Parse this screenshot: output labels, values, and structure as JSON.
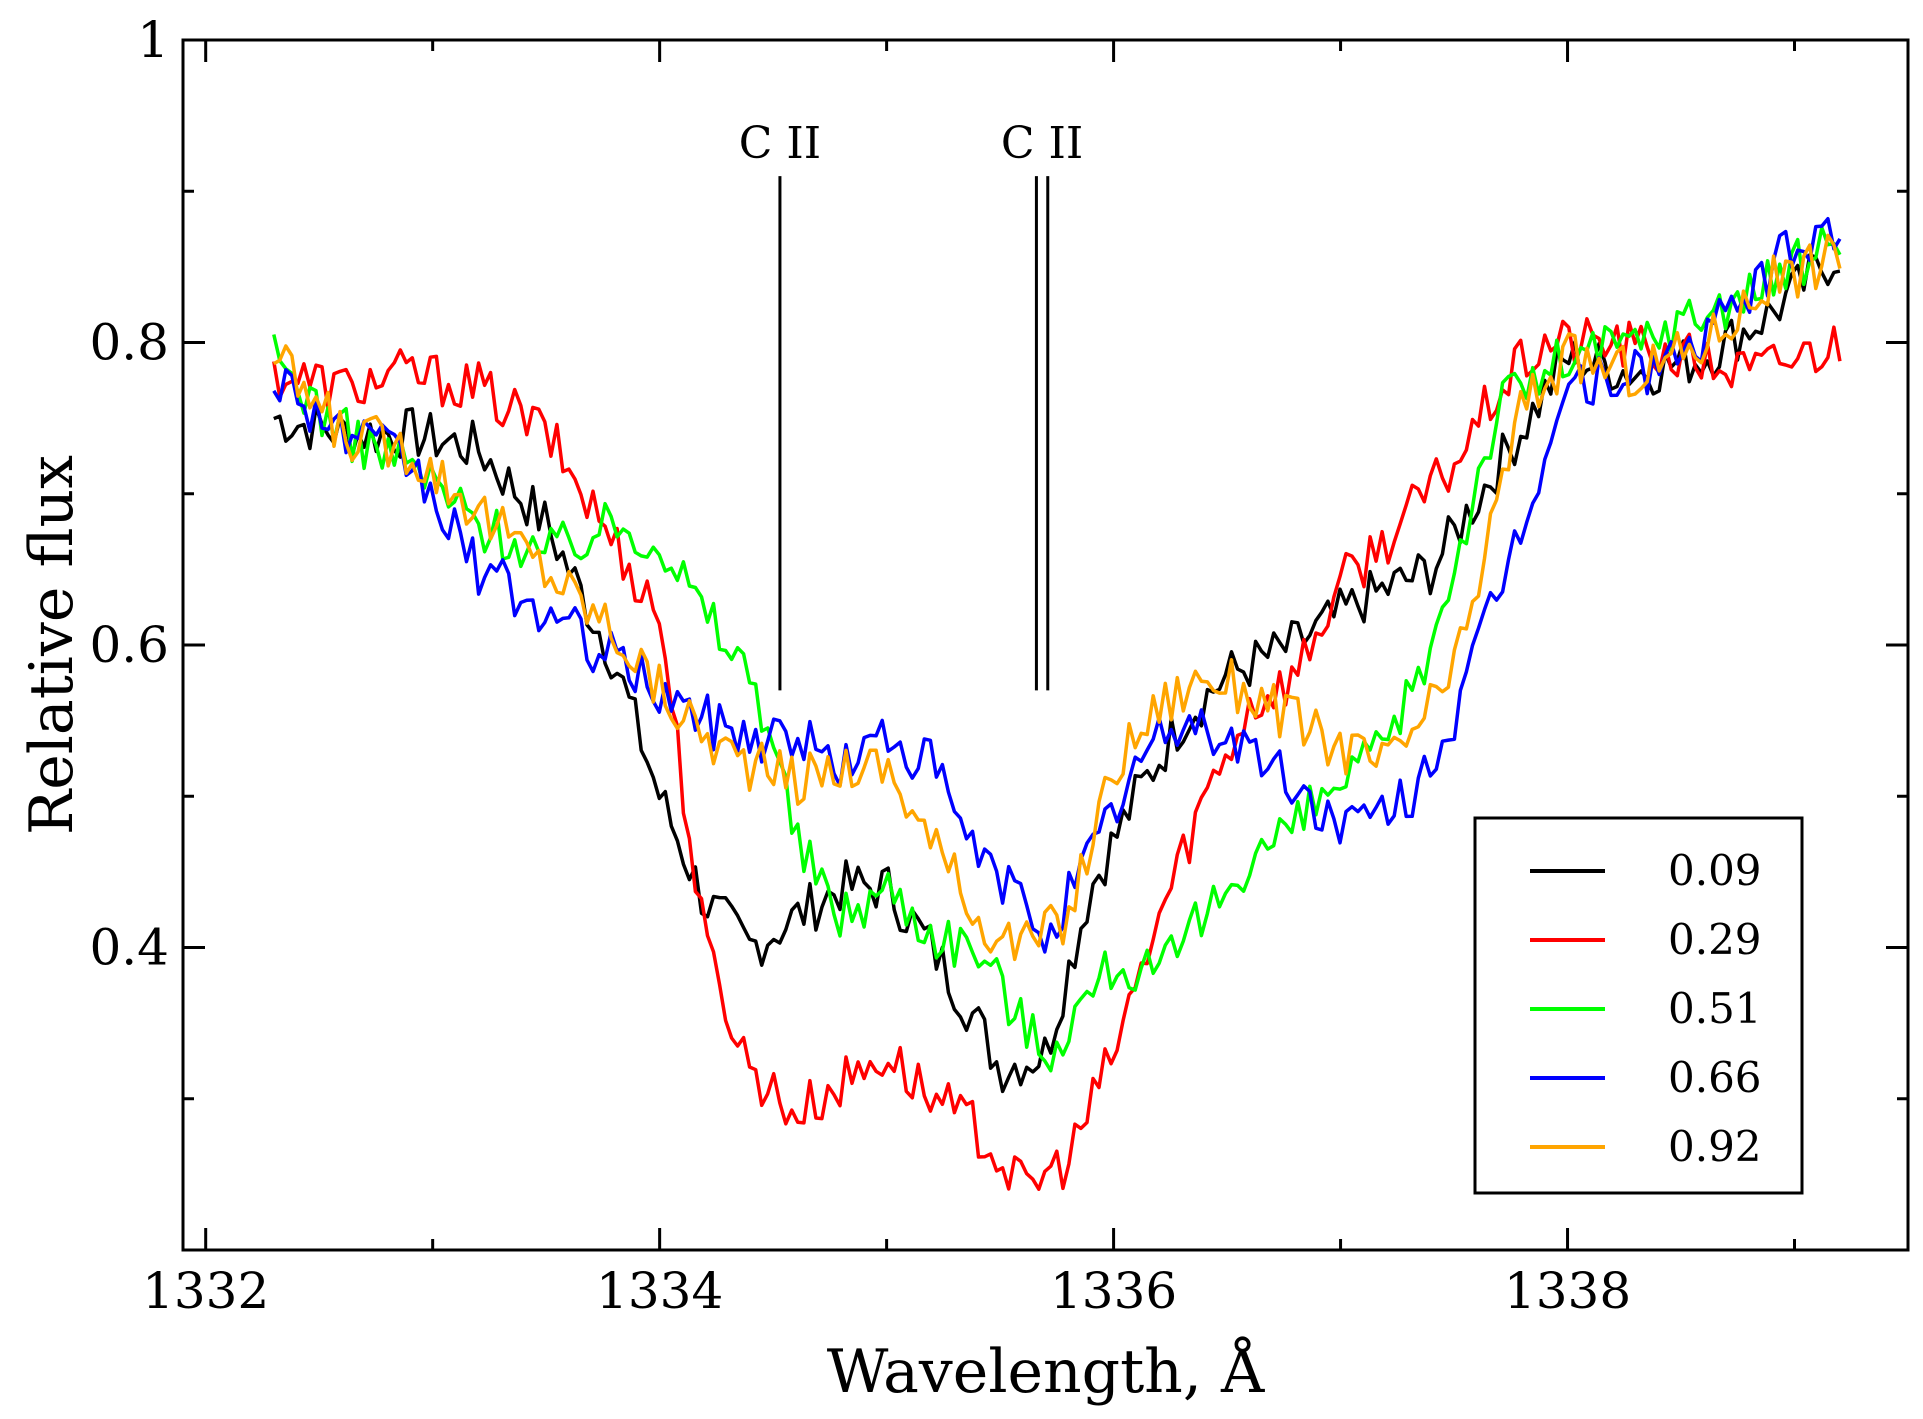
{
  "chart_data": {
    "type": "line",
    "title": "",
    "xlabel": "Wavelength, Å",
    "ylabel": "Relative flux",
    "xlim": [
      1331.9,
      1339.5
    ],
    "ylim": [
      0.2,
      1.0
    ],
    "x_ticks": [
      1332,
      1334,
      1336,
      1338
    ],
    "x_tick_labels": [
      "1332",
      "1334",
      "1336",
      "1338"
    ],
    "x_minor_ticks": [
      1333,
      1335,
      1337,
      1339
    ],
    "y_ticks": [
      0.4,
      0.6,
      0.8,
      1.0
    ],
    "y_tick_labels": [
      "0.4",
      "0.6",
      "0.8",
      "1"
    ],
    "y_minor_ticks": [
      0.3,
      0.5,
      0.7,
      0.9
    ],
    "grid": false,
    "legend_position": "bottom-right",
    "annotations": [
      {
        "label": "C II",
        "lines": [
          1334.53
        ],
        "y_top": 0.91,
        "y_bottom": 0.57
      },
      {
        "label": "C II",
        "lines": [
          1335.66,
          1335.71
        ],
        "y_top": 0.91,
        "y_bottom": 0.57
      }
    ],
    "series": [
      {
        "name": "0.09",
        "color": "#000000",
        "x": [
          1332.3,
          1332.6,
          1332.9,
          1333.2,
          1333.5,
          1333.8,
          1334.0,
          1334.2,
          1334.4,
          1334.6,
          1334.8,
          1335.0,
          1335.2,
          1335.4,
          1335.5,
          1335.7,
          1335.9,
          1336.1,
          1336.3,
          1336.5,
          1336.8,
          1337.1,
          1337.4,
          1337.7,
          1338.0,
          1338.3,
          1338.6,
          1338.9,
          1339.2
        ],
        "y": [
          0.75,
          0.74,
          0.74,
          0.73,
          0.68,
          0.59,
          0.5,
          0.43,
          0.4,
          0.42,
          0.44,
          0.44,
          0.4,
          0.35,
          0.32,
          0.33,
          0.44,
          0.5,
          0.55,
          0.58,
          0.6,
          0.63,
          0.65,
          0.72,
          0.79,
          0.78,
          0.79,
          0.82,
          0.86
        ]
      },
      {
        "name": "0.29",
        "color": "#ff0000",
        "x": [
          1332.3,
          1332.6,
          1332.9,
          1333.2,
          1333.5,
          1334.0,
          1334.2,
          1334.4,
          1334.6,
          1334.8,
          1335.0,
          1335.2,
          1335.4,
          1335.6,
          1335.8,
          1336.0,
          1336.2,
          1336.4,
          1336.6,
          1336.8,
          1337.0,
          1337.2,
          1337.5,
          1337.7,
          1337.9,
          1338.2,
          1338.5,
          1338.8,
          1339.2
        ],
        "y": [
          0.78,
          0.77,
          0.78,
          0.77,
          0.74,
          0.62,
          0.4,
          0.32,
          0.29,
          0.31,
          0.33,
          0.3,
          0.28,
          0.24,
          0.26,
          0.33,
          0.42,
          0.5,
          0.56,
          0.58,
          0.64,
          0.67,
          0.72,
          0.77,
          0.8,
          0.8,
          0.79,
          0.78,
          0.8
        ]
      },
      {
        "name": "0.51",
        "color": "#00ff00",
        "x": [
          1332.3,
          1332.6,
          1332.9,
          1333.2,
          1333.5,
          1333.8,
          1334.0,
          1334.2,
          1334.4,
          1334.5,
          1334.6,
          1334.8,
          1335.0,
          1335.2,
          1335.4,
          1335.6,
          1335.7,
          1335.9,
          1336.0,
          1336.2,
          1336.4,
          1336.6,
          1336.8,
          1337.0,
          1337.2,
          1337.4,
          1337.7,
          1338.0,
          1338.3,
          1338.6,
          1338.9,
          1339.2
        ],
        "y": [
          0.79,
          0.74,
          0.72,
          0.68,
          0.66,
          0.68,
          0.67,
          0.62,
          0.58,
          0.54,
          0.47,
          0.42,
          0.44,
          0.41,
          0.4,
          0.35,
          0.33,
          0.37,
          0.39,
          0.38,
          0.42,
          0.46,
          0.48,
          0.51,
          0.53,
          0.6,
          0.76,
          0.79,
          0.8,
          0.82,
          0.84,
          0.87
        ]
      },
      {
        "name": "0.66",
        "color": "#0000ff",
        "x": [
          1332.3,
          1332.6,
          1332.9,
          1333.2,
          1333.5,
          1333.8,
          1334.0,
          1334.2,
          1334.4,
          1334.6,
          1334.8,
          1335.0,
          1335.2,
          1335.4,
          1335.6,
          1335.7,
          1335.9,
          1336.1,
          1336.3,
          1336.5,
          1336.7,
          1336.9,
          1337.1,
          1337.3,
          1337.5,
          1337.8,
          1338.0,
          1338.3,
          1338.6,
          1338.9,
          1339.2
        ],
        "y": [
          0.78,
          0.74,
          0.72,
          0.65,
          0.62,
          0.59,
          0.57,
          0.55,
          0.54,
          0.54,
          0.52,
          0.54,
          0.52,
          0.46,
          0.43,
          0.41,
          0.46,
          0.52,
          0.55,
          0.54,
          0.52,
          0.49,
          0.48,
          0.5,
          0.55,
          0.68,
          0.77,
          0.78,
          0.8,
          0.85,
          0.88
        ]
      },
      {
        "name": "0.92",
        "color": "#ffa500",
        "x": [
          1332.3,
          1332.6,
          1332.9,
          1333.2,
          1333.5,
          1333.8,
          1334.0,
          1334.2,
          1334.4,
          1334.6,
          1334.8,
          1335.0,
          1335.2,
          1335.4,
          1335.6,
          1335.8,
          1336.0,
          1336.2,
          1336.4,
          1336.6,
          1336.9,
          1337.2,
          1337.5,
          1337.8,
          1338.0,
          1338.3,
          1338.6,
          1338.9,
          1339.2
        ],
        "y": [
          0.79,
          0.74,
          0.73,
          0.69,
          0.65,
          0.61,
          0.57,
          0.54,
          0.52,
          0.51,
          0.52,
          0.52,
          0.47,
          0.42,
          0.4,
          0.42,
          0.52,
          0.56,
          0.58,
          0.57,
          0.54,
          0.52,
          0.58,
          0.76,
          0.79,
          0.78,
          0.8,
          0.84,
          0.86
        ]
      }
    ]
  }
}
